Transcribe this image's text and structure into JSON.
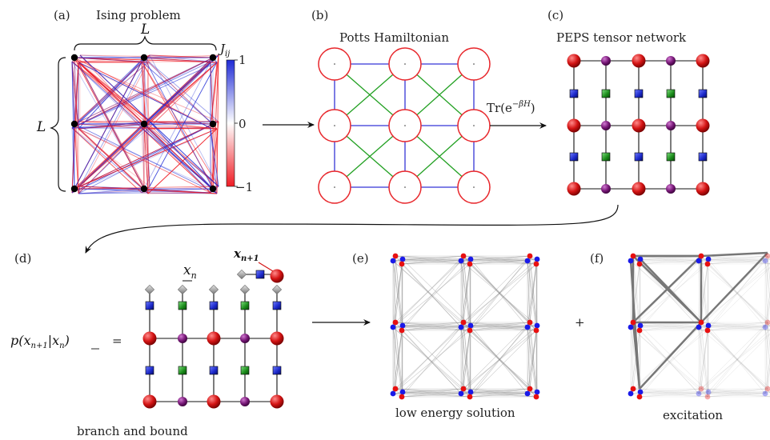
{
  "panels": {
    "a": {
      "label": "(a)",
      "title": "Ising problem",
      "dim_top": "L",
      "dim_left": "L",
      "colorbar": {
        "title": "J",
        "title_sub": "ij",
        "max": "1",
        "mid": "0",
        "min": "−1",
        "colors": {
          "pos": "#1f2bd6",
          "neg": "#ef1c24"
        }
      }
    },
    "b": {
      "label": "(b)",
      "title": "Potts Hamiltonian",
      "colors": {
        "node": "#e8262b",
        "bond": "#3535d6",
        "diag": "#22a022"
      }
    },
    "c": {
      "label": "(c)",
      "title": "PEPS tensor network",
      "colors": {
        "red": "#d41414",
        "purple": "#7a1a7a",
        "blue": "#1b28c8",
        "green": "#1a8a1a"
      }
    },
    "d": {
      "label": "(d)",
      "xn": "x",
      "xn_sub": "n",
      "xn1": "x",
      "xn1_sub": "n+1",
      "eq_lhs": "p(x",
      "eq_sub": "n+1",
      "eq_bar": "|x",
      "eq_bar_sub": "n",
      "eq_close": ")",
      "eq_sign": "=",
      "caption": "branch and bound"
    },
    "e": {
      "label": "(e)",
      "caption": "low energy solution"
    },
    "f": {
      "label": "(f)",
      "caption": "excitation",
      "plus": "+"
    }
  },
  "arrows": {
    "bc_label": "Tr(e",
    "bc_exp": "−βH",
    "bc_close": ")"
  }
}
